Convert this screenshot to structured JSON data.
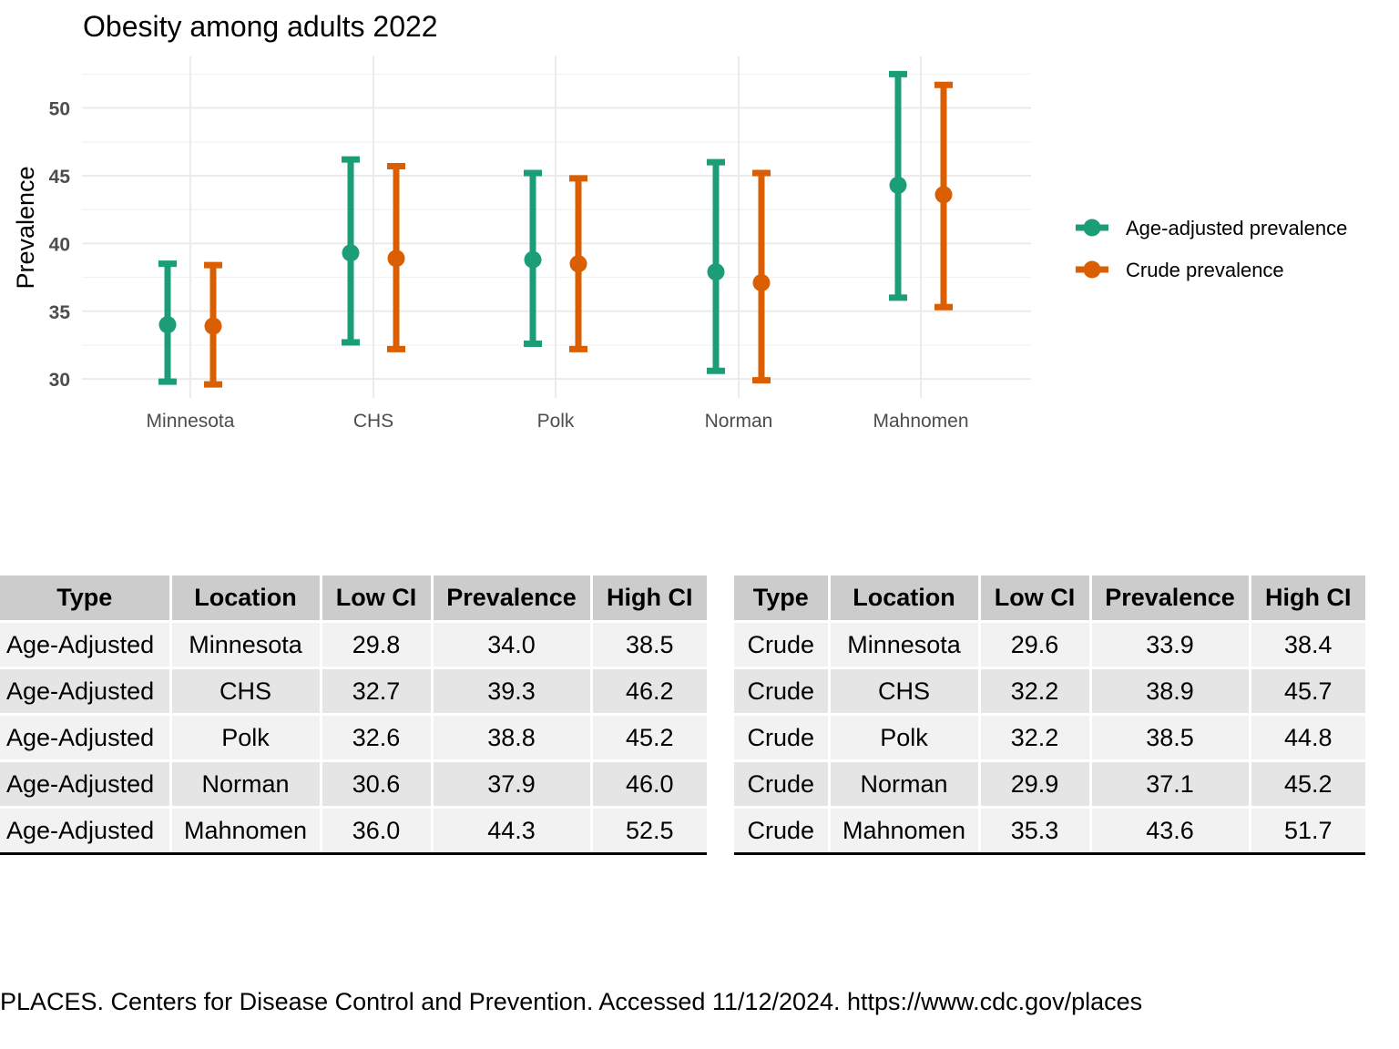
{
  "chart_data": {
    "type": "errorbar",
    "title": "Obesity among adults 2022",
    "xlabel": "",
    "ylabel": "Prevalence",
    "ylim": [
      28.6,
      53.8
    ],
    "yticks": [
      30,
      35,
      40,
      45,
      50
    ],
    "grid": true,
    "legend_position": "right",
    "categories": [
      "Minnesota",
      "CHS",
      "Polk",
      "Norman",
      "Mahnomen"
    ],
    "series": [
      {
        "name": "Age-adjusted prevalence",
        "color": "#1b9e77",
        "values": [
          34.0,
          39.3,
          38.8,
          37.9,
          44.3
        ],
        "low": [
          29.8,
          32.7,
          32.6,
          30.6,
          36.0
        ],
        "high": [
          38.5,
          46.2,
          45.2,
          46.0,
          52.5
        ]
      },
      {
        "name": "Crude prevalence",
        "color": "#d95f02",
        "values": [
          33.9,
          38.9,
          38.5,
          37.1,
          43.6
        ],
        "low": [
          29.6,
          32.2,
          32.2,
          29.9,
          35.3
        ],
        "high": [
          38.4,
          45.7,
          44.8,
          45.2,
          51.7
        ]
      }
    ]
  },
  "tables": [
    {
      "headers": [
        "Type",
        "Location",
        "Low CI",
        "Prevalence",
        "High CI"
      ],
      "rows": [
        [
          "Age-Adjusted",
          "Minnesota",
          "29.8",
          "34.0",
          "38.5"
        ],
        [
          "Age-Adjusted",
          "CHS",
          "32.7",
          "39.3",
          "46.2"
        ],
        [
          "Age-Adjusted",
          "Polk",
          "32.6",
          "38.8",
          "45.2"
        ],
        [
          "Age-Adjusted",
          "Norman",
          "30.6",
          "37.9",
          "46.0"
        ],
        [
          "Age-Adjusted",
          "Mahnomen",
          "36.0",
          "44.3",
          "52.5"
        ]
      ]
    },
    {
      "headers": [
        "Type",
        "Location",
        "Low CI",
        "Prevalence",
        "High CI"
      ],
      "rows": [
        [
          "Crude",
          "Minnesota",
          "29.6",
          "33.9",
          "38.4"
        ],
        [
          "Crude",
          "CHS",
          "32.2",
          "38.9",
          "45.7"
        ],
        [
          "Crude",
          "Polk",
          "32.2",
          "38.5",
          "44.8"
        ],
        [
          "Crude",
          "Norman",
          "29.9",
          "37.1",
          "45.2"
        ],
        [
          "Crude",
          "Mahnomen",
          "35.3",
          "43.6",
          "51.7"
        ]
      ]
    }
  ],
  "source": "PLACES. Centers for Disease Control and Prevention. Accessed 11/12/2024. https://www.cdc.gov/places"
}
